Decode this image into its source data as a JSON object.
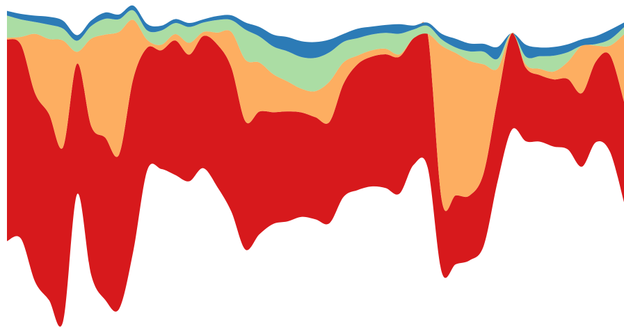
{
  "chart_data": {
    "type": "area",
    "subtype": "streamgraph",
    "title": "",
    "xlabel": "",
    "ylabel": "",
    "x": [
      0,
      1,
      2,
      3,
      4,
      5,
      6,
      7,
      8,
      9,
      10,
      11,
      12,
      13,
      14,
      15,
      16,
      17,
      18,
      19,
      20,
      21,
      22,
      23,
      24,
      25,
      26,
      27,
      28,
      29,
      30,
      31,
      32,
      33,
      34,
      35,
      36,
      37,
      38,
      39,
      40,
      41,
      42,
      43,
      44
    ],
    "series": [
      {
        "color": "#d7191c",
        "values": [
          255,
          245,
          238,
          235,
          220,
          165,
          188,
          205,
          195,
          218,
          155,
          150,
          170,
          160,
          167,
          180,
          182,
          162,
          155,
          141,
          139,
          132,
          129,
          128,
          143,
          159,
          164,
          169,
          173,
          160,
          169,
          91,
          87,
          82,
          92,
          104,
          122,
          93,
          84,
          85,
          89,
          93,
          102,
          122,
          127
        ]
      },
      {
        "color": "#fdae61",
        "values": [
          2,
          10,
          75,
          95,
          135,
          15,
          110,
          130,
          155,
          75,
          10,
          7,
          8,
          15,
          5,
          15,
          45,
          78,
          62,
          48,
          38,
          30,
          33,
          51,
          27,
          11,
          8,
          7,
          3,
          0,
          0,
          195,
          180,
          170,
          137,
          38,
          0,
          4,
          8,
          10,
          22,
          60,
          20,
          12,
          85
        ]
      },
      {
        "color": "#abdda4",
        "values": [
          28,
          22,
          15,
          18,
          15,
          14,
          16,
          20,
          16,
          12,
          12,
          18,
          14,
          20,
          12,
          16,
          15,
          38,
          33,
          35,
          38,
          40,
          42,
          37,
          26,
          22,
          20,
          20,
          26,
          11,
          10,
          8,
          7,
          12,
          16,
          12,
          0,
          10,
          16,
          20,
          12,
          0,
          2,
          8,
          9
        ]
      },
      {
        "color": "#2c7bb6",
        "values": [
          6,
          7,
          8,
          10,
          10,
          7,
          7,
          8,
          6,
          6,
          8,
          6,
          5,
          5,
          4,
          5,
          6,
          9,
          12,
          15,
          18,
          20,
          20,
          16,
          10,
          12,
          10,
          10,
          12,
          5,
          4,
          7,
          11,
          10,
          10,
          15,
          0,
          15,
          11,
          11,
          10,
          8,
          10,
          12,
          6
        ]
      }
    ],
    "baseline": "wiggle",
    "grid": false,
    "legend": "none"
  }
}
